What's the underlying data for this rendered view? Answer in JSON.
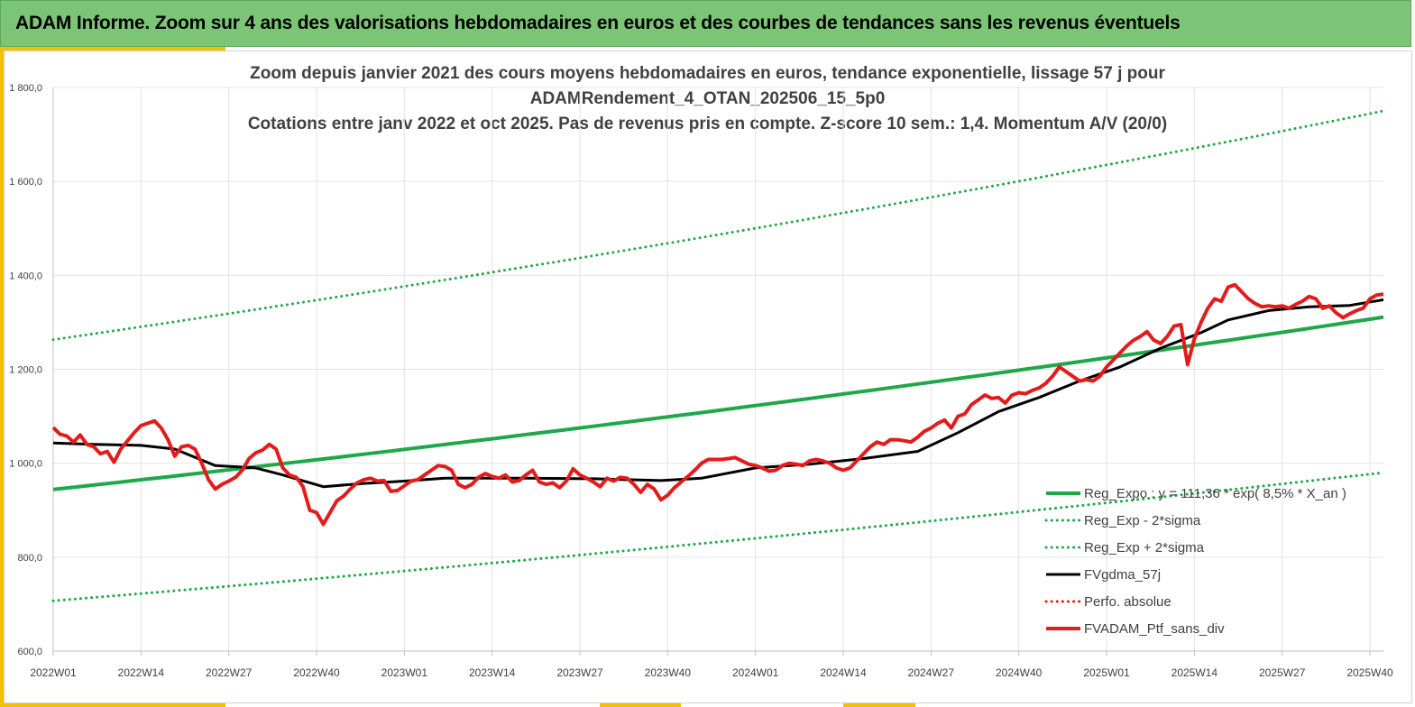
{
  "header": {
    "title": "ADAM Informe. Zoom sur 4 ans des valorisations hebdomadaires en euros et des courbes de tendances sans les revenus éventuels"
  },
  "chart_data": {
    "type": "line",
    "title_lines": [
      "Zoom depuis janvier 2021 des cours moyens hebdomadaires  en euros, tendance exponentielle, lissage 57 j pour",
      "ADAMRendement_4_OTAN_202506_15_5p0",
      "Cotations  entre janv 2022 et oct 2025. Pas de revenus pris en compte. Z-score 10 sem.: 1,4. Momentum A/V (20/0)"
    ],
    "ylim": [
      600,
      1800
    ],
    "y_ticks": [
      600,
      800,
      1000,
      1200,
      1400,
      1600,
      1800
    ],
    "y_tick_labels": [
      "600,0",
      "800,0",
      "1 000,0",
      "1 200,0",
      "1 400,0",
      "1 600,0",
      "1 800,0"
    ],
    "x_week_range": [
      0,
      197
    ],
    "x_tick_positions": [
      0,
      13,
      26,
      39,
      52,
      65,
      78,
      91,
      104,
      117,
      130,
      143,
      156,
      169,
      182,
      195
    ],
    "x_tick_labels": [
      "2022W01",
      "2022W14",
      "2022W27",
      "2022W40",
      "2023W01",
      "2023W14",
      "2023W27",
      "2023W40",
      "2024W01",
      "2024W14",
      "2024W27",
      "2024W40",
      "2025W01",
      "2025W14",
      "2025W27",
      "2025W40"
    ],
    "grid": "horizontal and vertical",
    "legend_position": "bottom-right, inside plot",
    "series": [
      {
        "name": "Reg_Expo : y = 111,36 * exp( 8,5% *  X_an )",
        "style": "solid",
        "color": "#1fa84a",
        "width": 4,
        "x": [
          0,
          197
        ],
        "y": [
          944,
          1311
        ],
        "interpolation": "exponential"
      },
      {
        "name": "Reg_Exp - 2*sigma",
        "style": "dotted",
        "color": "#1fa84a",
        "width": 3,
        "x": [
          0,
          197
        ],
        "y": [
          707,
          980
        ],
        "interpolation": "exponential"
      },
      {
        "name": "Reg_Exp + 2*sigma",
        "style": "dotted",
        "color": "#1fa84a",
        "width": 3,
        "x": [
          0,
          197
        ],
        "y": [
          1263,
          1750
        ],
        "interpolation": "exponential"
      },
      {
        "name": "FVgdma_57j",
        "style": "solid",
        "color": "#000000",
        "width": 3,
        "x": [
          0,
          6,
          13,
          18,
          24,
          30,
          34,
          40,
          46,
          52,
          58,
          64,
          70,
          80,
          90,
          96,
          104,
          112,
          120,
          128,
          134,
          140,
          146,
          152,
          158,
          164,
          170,
          174,
          180,
          186,
          192,
          197
        ],
        "y": [
          1043,
          1040,
          1038,
          1030,
          995,
          990,
          975,
          950,
          957,
          962,
          968,
          968,
          968,
          967,
          963,
          968,
          990,
          998,
          1010,
          1025,
          1065,
          1110,
          1140,
          1175,
          1205,
          1245,
          1278,
          1305,
          1325,
          1333,
          1336,
          1348
        ]
      },
      {
        "name": "Perfo. absolue",
        "style": "dotted",
        "color": "#e31b1b",
        "width": 3,
        "x": [],
        "y": []
      },
      {
        "name": "FVADAM_Ptf_sans_div",
        "style": "solid",
        "color": "#e31b1b",
        "width": 4,
        "x": [
          0,
          1,
          2,
          3,
          4,
          5,
          6,
          7,
          8,
          9,
          10,
          11,
          12,
          13,
          14,
          15,
          16,
          17,
          18,
          19,
          20,
          21,
          22,
          23,
          24,
          25,
          26,
          27,
          28,
          29,
          30,
          31,
          32,
          33,
          34,
          35,
          36,
          37,
          38,
          39,
          40,
          41,
          42,
          43,
          44,
          45,
          46,
          47,
          48,
          49,
          50,
          51,
          52,
          53,
          54,
          55,
          56,
          57,
          58,
          59,
          60,
          61,
          62,
          63,
          64,
          65,
          66,
          67,
          68,
          69,
          70,
          71,
          72,
          73,
          74,
          75,
          76,
          77,
          78,
          79,
          80,
          81,
          82,
          83,
          84,
          85,
          86,
          87,
          88,
          89,
          90,
          91,
          92,
          93,
          94,
          95,
          96,
          97,
          98,
          99,
          100,
          101,
          102,
          103,
          104,
          105,
          106,
          107,
          108,
          109,
          110,
          111,
          112,
          113,
          114,
          115,
          116,
          117,
          118,
          119,
          120,
          121,
          122,
          123,
          124,
          125,
          126,
          127,
          128,
          129,
          130,
          131,
          132,
          133,
          134,
          135,
          136,
          137,
          138,
          139,
          140,
          141,
          142,
          143,
          144,
          145,
          146,
          147,
          148,
          149,
          150,
          151,
          152,
          153,
          154,
          155,
          156,
          157,
          158,
          159,
          160,
          161,
          162,
          163,
          164,
          165,
          166,
          167,
          168,
          169,
          170,
          171,
          172,
          173,
          174,
          175,
          176,
          177,
          178,
          179,
          180,
          181,
          182,
          183,
          184,
          185,
          186,
          187,
          188,
          189,
          190,
          191,
          192,
          193,
          194,
          195,
          196,
          197
        ],
        "y": [
          1076,
          1062,
          1058,
          1045,
          1060,
          1040,
          1035,
          1020,
          1025,
          1002,
          1030,
          1048,
          1065,
          1080,
          1085,
          1090,
          1075,
          1050,
          1015,
          1035,
          1038,
          1030,
          1000,
          965,
          945,
          955,
          962,
          970,
          985,
          1010,
          1022,
          1028,
          1040,
          1030,
          990,
          975,
          970,
          950,
          900,
          895,
          870,
          895,
          920,
          930,
          945,
          958,
          965,
          968,
          962,
          963,
          940,
          942,
          952,
          962,
          965,
          975,
          985,
          995,
          993,
          985,
          955,
          948,
          955,
          970,
          978,
          972,
          968,
          975,
          960,
          963,
          975,
          985,
          960,
          955,
          958,
          948,
          962,
          988,
          975,
          968,
          960,
          950,
          968,
          962,
          970,
          968,
          955,
          938,
          955,
          945,
          922,
          932,
          948,
          960,
          972,
          985,
          1000,
          1008,
          1008,
          1008,
          1010,
          1012,
          1005,
          998,
          995,
          990,
          983,
          985,
          995,
          1000,
          998,
          995,
          1005,
          1008,
          1005,
          1000,
          990,
          985,
          990,
          1005,
          1020,
          1035,
          1045,
          1040,
          1050,
          1050,
          1048,
          1045,
          1055,
          1068,
          1075,
          1085,
          1092,
          1075,
          1100,
          1105,
          1125,
          1135,
          1145,
          1138,
          1140,
          1128,
          1145,
          1150,
          1148,
          1155,
          1160,
          1170,
          1185,
          1205,
          1195,
          1185,
          1175,
          1178,
          1175,
          1185,
          1205,
          1220,
          1235,
          1250,
          1262,
          1270,
          1280,
          1262,
          1255,
          1270,
          1292,
          1295,
          1210,
          1265,
          1300,
          1330,
          1350,
          1345,
          1375,
          1380,
          1365,
          1350,
          1340,
          1333,
          1335,
          1333,
          1335,
          1330,
          1338,
          1345,
          1355,
          1350,
          1330,
          1335,
          1320,
          1310,
          1318,
          1325,
          1330,
          1350,
          1358,
          1360
        ]
      }
    ]
  }
}
